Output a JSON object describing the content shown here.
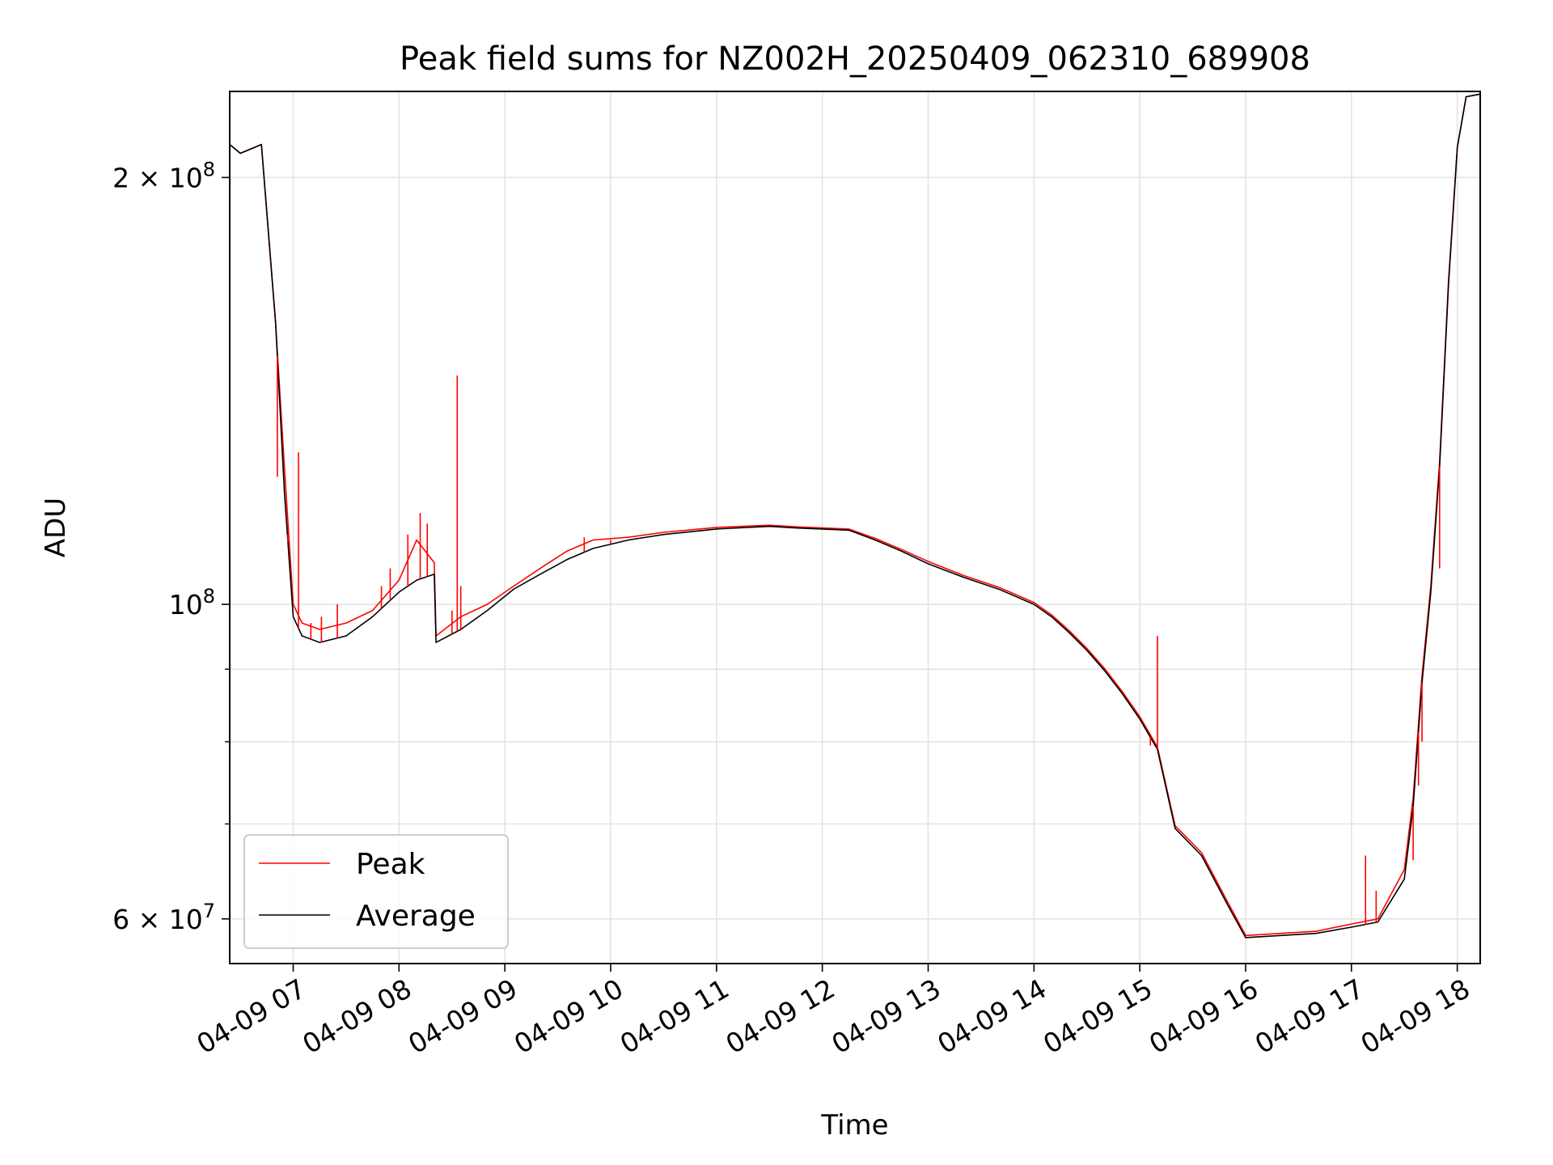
{
  "chart_data": {
    "type": "line",
    "title": "Peak field sums for NZ002H_20250409_062310_689908",
    "xlabel": "Time",
    "ylabel": "ADU",
    "yscale": "log",
    "xlim": [
      "2025-04-09 06:24",
      "2025-04-09 18:13"
    ],
    "ylim": [
      55800000,
      230000000
    ],
    "grid": true,
    "legend_position": "lower-left",
    "x_ticks": [
      "04-09 07",
      "04-09 08",
      "04-09 09",
      "04-09 10",
      "04-09 11",
      "04-09 12",
      "04-09 13",
      "04-09 14",
      "04-09 15",
      "04-09 16",
      "04-09 17",
      "04-09 18"
    ],
    "y_ticks": [
      {
        "value": 200000000,
        "mantissa": "2",
        "exp": "8"
      },
      {
        "value": 100000000,
        "mantissa": "",
        "exp": "8"
      },
      {
        "value": 60000000,
        "mantissa": "6",
        "exp": "7"
      }
    ],
    "x": [
      "06:24",
      "06:30",
      "06:42",
      "06:50",
      "06:55",
      "07:00",
      "07:05",
      "07:15",
      "07:30",
      "07:45",
      "08:00",
      "08:10",
      "08:20",
      "08:21",
      "08:35",
      "08:50",
      "09:05",
      "09:20",
      "09:35",
      "09:50",
      "10:10",
      "10:30",
      "11:00",
      "11:30",
      "11:45",
      "12:00",
      "12:15",
      "12:30",
      "12:45",
      "13:00",
      "13:20",
      "13:40",
      "14:00",
      "14:10",
      "14:20",
      "14:30",
      "14:40",
      "14:50",
      "15:00",
      "15:10",
      "15:20",
      "15:35",
      "15:50",
      "16:00",
      "16:20",
      "16:40",
      "17:00",
      "17:15",
      "17:30",
      "17:35",
      "17:40",
      "17:45",
      "17:50",
      "17:55",
      "18:00",
      "18:05",
      "18:13"
    ],
    "series": [
      {
        "name": "Average",
        "color": "#000000",
        "values": [
          211000000,
          208000000,
          211000000,
          158000000,
          120000000,
          98000000,
          95000000,
          94000000,
          95000000,
          98000000,
          102000000,
          104000000,
          105000000,
          94000000,
          96000000,
          99000000,
          102500000,
          105000000,
          107500000,
          109500000,
          111000000,
          112000000,
          113000000,
          113500000,
          113200000,
          113000000,
          112800000,
          111000000,
          109000000,
          106800000,
          104500000,
          102500000,
          100000000,
          98000000,
          95500000,
          92800000,
          89800000,
          86500000,
          83000000,
          79000000,
          69500000,
          66500000,
          61300000,
          58200000,
          58400000,
          58600000,
          59200000,
          59700000,
          64000000,
          72000000,
          88000000,
          102000000,
          125000000,
          168000000,
          210000000,
          228000000,
          229000000
        ]
      },
      {
        "name": "Peak",
        "color": "#ff0000",
        "values": [
          211000000,
          208000000,
          211000000,
          158000000,
          125000000,
          100000000,
          97000000,
          96000000,
          97000000,
          99000000,
          104000000,
          111000000,
          107000000,
          95000000,
          98000000,
          100000000,
          103000000,
          106000000,
          109000000,
          111000000,
          111500000,
          112400000,
          113300000,
          113700000,
          113400000,
          113200000,
          113000000,
          111300000,
          109300000,
          107200000,
          104800000,
          102800000,
          100300000,
          98300000,
          95800000,
          93100000,
          90100000,
          86800000,
          83300000,
          79300000,
          69800000,
          66800000,
          61600000,
          58400000,
          58600000,
          58800000,
          59500000,
          60000000,
          65000000,
          73000000,
          89000000,
          103000000,
          126000000,
          169000000,
          210000000,
          228000000,
          229000000
        ]
      }
    ],
    "peak_spikes": [
      {
        "x": "06:51",
        "y": 123000000
      },
      {
        "x": "06:57",
        "y": 112000000
      },
      {
        "x": "07:03",
        "y": 128000000
      },
      {
        "x": "07:10",
        "y": 97000000
      },
      {
        "x": "07:16",
        "y": 98000000
      },
      {
        "x": "07:25",
        "y": 100000000
      },
      {
        "x": "07:50",
        "y": 103000000
      },
      {
        "x": "07:55",
        "y": 106000000
      },
      {
        "x": "08:05",
        "y": 112000000
      },
      {
        "x": "08:12",
        "y": 116000000
      },
      {
        "x": "08:16",
        "y": 114000000
      },
      {
        "x": "08:30",
        "y": 99000000
      },
      {
        "x": "08:33",
        "y": 145000000
      },
      {
        "x": "08:35",
        "y": 103000000
      },
      {
        "x": "09:45",
        "y": 111500000
      },
      {
        "x": "10:00",
        "y": 111000000
      },
      {
        "x": "15:10",
        "y": 95000000
      },
      {
        "x": "15:06",
        "y": 79500000
      },
      {
        "x": "17:08",
        "y": 66500000
      },
      {
        "x": "17:14",
        "y": 62800000
      },
      {
        "x": "17:35",
        "y": 66000000
      },
      {
        "x": "17:38",
        "y": 74500000
      },
      {
        "x": "17:40",
        "y": 80000000
      },
      {
        "x": "17:50",
        "y": 106000000
      }
    ]
  }
}
